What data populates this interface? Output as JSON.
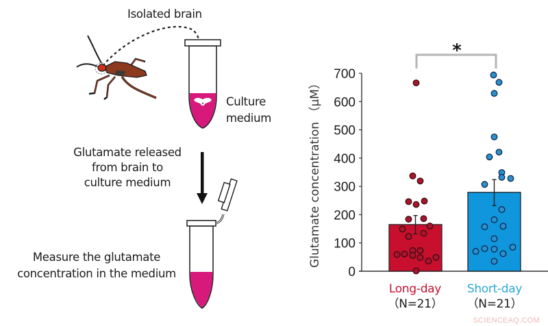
{
  "diagram": {
    "step1_label": "Isolated brain",
    "tube1_label_line1": "Culture",
    "tube1_label_line2": "medium",
    "step2_label_line1": "Glutamate released",
    "step2_label_line2": "from brain to",
    "step2_label_line3": "culture medium",
    "step3_label_line1": "Measure the glutamate",
    "step3_label_line2": "concentration in the medium",
    "colors": {
      "medium": "#d6197b",
      "insect_body": "#8b3a1e",
      "insect_head": "#d0321e"
    }
  },
  "chart_data": {
    "type": "bar",
    "title": "",
    "xlabel": "",
    "ylabel": "Glutamate concentration （μM）",
    "ylim": [
      0,
      700
    ],
    "yticks": [
      0,
      100,
      200,
      300,
      400,
      500,
      600,
      700
    ],
    "grid": false,
    "categories": [
      "Long-day",
      "Short-day"
    ],
    "category_sublabels": [
      "（N=21）",
      "（N=21）"
    ],
    "values": [
      165,
      279
    ],
    "error_bars": [
      {
        "low": 132,
        "high": 197
      },
      {
        "low": 232,
        "high": 324
      }
    ],
    "colors": [
      "#c8102e",
      "#0f96dc"
    ],
    "label_colors": [
      "#c8102e",
      "#2aa7d8"
    ],
    "individual_points": [
      {
        "name": "Long-day",
        "values": [
          666,
          337,
          319,
          246,
          236,
          248,
          184,
          186,
          149,
          160,
          123,
          134,
          59,
          61,
          73,
          56,
          73,
          48,
          36,
          49,
          1
        ]
      },
      {
        "name": "Short-day",
        "values": [
          694,
          668,
          629,
          475,
          421,
          404,
          349,
          332,
          328,
          307,
          218,
          182,
          157,
          159,
          115,
          70,
          80,
          78,
          62,
          85,
          35
        ]
      }
    ],
    "annotations": [
      {
        "text": "*",
        "type": "significance-bracket",
        "between": [
          "Long-day",
          "Short-day"
        ]
      }
    ]
  },
  "watermark": "SCIENCEAQ.COM"
}
